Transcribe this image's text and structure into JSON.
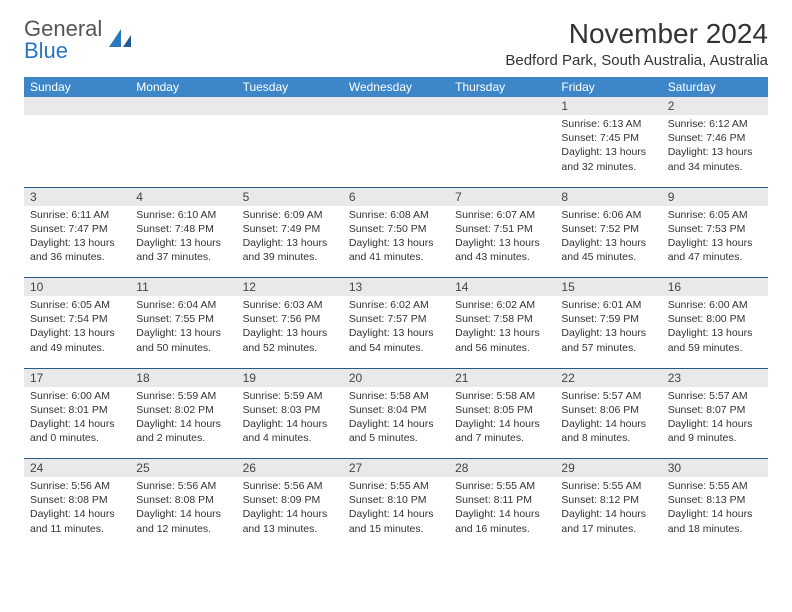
{
  "brand": {
    "line1": "General",
    "line2": "Blue"
  },
  "title": "November 2024",
  "location": "Bedford Park, South Australia, Australia",
  "colors": {
    "header_bg": "#3d87c9",
    "accent": "#2a77bf",
    "daynum_bg": "#e9e9e9",
    "border": "#2a5a8a",
    "text": "#333333"
  },
  "day_names": [
    "Sunday",
    "Monday",
    "Tuesday",
    "Wednesday",
    "Thursday",
    "Friday",
    "Saturday"
  ],
  "weeks": [
    [
      null,
      null,
      null,
      null,
      null,
      {
        "n": "1",
        "sr": "6:13 AM",
        "ss": "7:45 PM",
        "dh": "13",
        "dm": "32"
      },
      {
        "n": "2",
        "sr": "6:12 AM",
        "ss": "7:46 PM",
        "dh": "13",
        "dm": "34"
      }
    ],
    [
      {
        "n": "3",
        "sr": "6:11 AM",
        "ss": "7:47 PM",
        "dh": "13",
        "dm": "36"
      },
      {
        "n": "4",
        "sr": "6:10 AM",
        "ss": "7:48 PM",
        "dh": "13",
        "dm": "37"
      },
      {
        "n": "5",
        "sr": "6:09 AM",
        "ss": "7:49 PM",
        "dh": "13",
        "dm": "39"
      },
      {
        "n": "6",
        "sr": "6:08 AM",
        "ss": "7:50 PM",
        "dh": "13",
        "dm": "41"
      },
      {
        "n": "7",
        "sr": "6:07 AM",
        "ss": "7:51 PM",
        "dh": "13",
        "dm": "43"
      },
      {
        "n": "8",
        "sr": "6:06 AM",
        "ss": "7:52 PM",
        "dh": "13",
        "dm": "45"
      },
      {
        "n": "9",
        "sr": "6:05 AM",
        "ss": "7:53 PM",
        "dh": "13",
        "dm": "47"
      }
    ],
    [
      {
        "n": "10",
        "sr": "6:05 AM",
        "ss": "7:54 PM",
        "dh": "13",
        "dm": "49"
      },
      {
        "n": "11",
        "sr": "6:04 AM",
        "ss": "7:55 PM",
        "dh": "13",
        "dm": "50"
      },
      {
        "n": "12",
        "sr": "6:03 AM",
        "ss": "7:56 PM",
        "dh": "13",
        "dm": "52"
      },
      {
        "n": "13",
        "sr": "6:02 AM",
        "ss": "7:57 PM",
        "dh": "13",
        "dm": "54"
      },
      {
        "n": "14",
        "sr": "6:02 AM",
        "ss": "7:58 PM",
        "dh": "13",
        "dm": "56"
      },
      {
        "n": "15",
        "sr": "6:01 AM",
        "ss": "7:59 PM",
        "dh": "13",
        "dm": "57"
      },
      {
        "n": "16",
        "sr": "6:00 AM",
        "ss": "8:00 PM",
        "dh": "13",
        "dm": "59"
      }
    ],
    [
      {
        "n": "17",
        "sr": "6:00 AM",
        "ss": "8:01 PM",
        "dh": "14",
        "dm": "0"
      },
      {
        "n": "18",
        "sr": "5:59 AM",
        "ss": "8:02 PM",
        "dh": "14",
        "dm": "2"
      },
      {
        "n": "19",
        "sr": "5:59 AM",
        "ss": "8:03 PM",
        "dh": "14",
        "dm": "4"
      },
      {
        "n": "20",
        "sr": "5:58 AM",
        "ss": "8:04 PM",
        "dh": "14",
        "dm": "5"
      },
      {
        "n": "21",
        "sr": "5:58 AM",
        "ss": "8:05 PM",
        "dh": "14",
        "dm": "7"
      },
      {
        "n": "22",
        "sr": "5:57 AM",
        "ss": "8:06 PM",
        "dh": "14",
        "dm": "8"
      },
      {
        "n": "23",
        "sr": "5:57 AM",
        "ss": "8:07 PM",
        "dh": "14",
        "dm": "9"
      }
    ],
    [
      {
        "n": "24",
        "sr": "5:56 AM",
        "ss": "8:08 PM",
        "dh": "14",
        "dm": "11"
      },
      {
        "n": "25",
        "sr": "5:56 AM",
        "ss": "8:08 PM",
        "dh": "14",
        "dm": "12"
      },
      {
        "n": "26",
        "sr": "5:56 AM",
        "ss": "8:09 PM",
        "dh": "14",
        "dm": "13"
      },
      {
        "n": "27",
        "sr": "5:55 AM",
        "ss": "8:10 PM",
        "dh": "14",
        "dm": "15"
      },
      {
        "n": "28",
        "sr": "5:55 AM",
        "ss": "8:11 PM",
        "dh": "14",
        "dm": "16"
      },
      {
        "n": "29",
        "sr": "5:55 AM",
        "ss": "8:12 PM",
        "dh": "14",
        "dm": "17"
      },
      {
        "n": "30",
        "sr": "5:55 AM",
        "ss": "8:13 PM",
        "dh": "14",
        "dm": "18"
      }
    ]
  ],
  "labels": {
    "sunrise": "Sunrise: ",
    "sunset": "Sunset: ",
    "daylight_pre": "Daylight: ",
    "daylight_mid": " hours and ",
    "daylight_post": " minutes."
  }
}
